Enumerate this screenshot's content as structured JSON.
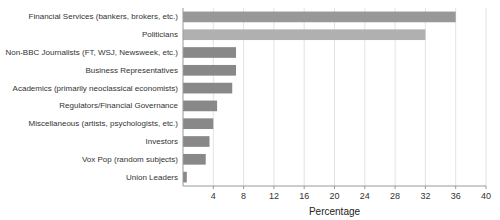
{
  "chart_data": {
    "type": "bar",
    "orientation": "horizontal",
    "categories": [
      "Union Leaders",
      "Vox Pop (random subjects)",
      "Investors",
      "Miscellaneous (artists, psychologists, etc.)",
      "Regulators/Financial Governance",
      "Academics (primarily neoclassical economists)",
      "Business Representatives",
      "Non-BBC Journalists (FT, WSJ, Newsweek, etc.)",
      "Politicians",
      "Financial Services (bankers, brokers, etc.)"
    ],
    "values": [
      0.5,
      3.0,
      3.5,
      4.0,
      4.5,
      6.5,
      7.0,
      7.0,
      32.0,
      36.0
    ],
    "colors": [
      "#888888",
      "#888888",
      "#888888",
      "#888888",
      "#888888",
      "#888888",
      "#888888",
      "#888888",
      "#b0b0b0",
      "#989898"
    ],
    "xlabel": "Percentage",
    "xlim": [
      0,
      40
    ],
    "xticks": [
      4,
      8,
      12,
      16,
      20,
      24,
      28,
      32,
      36,
      40
    ],
    "grid": true
  }
}
